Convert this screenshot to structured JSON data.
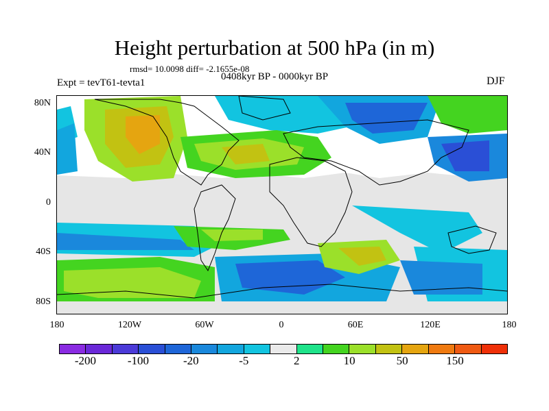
{
  "title": "Height perturbation at 500 hPa (in m)",
  "stats": "rmsd= 10.0098 diff= -2.1655e-08",
  "period": "0408kyr BP - 0000kyr BP",
  "experiment": "Expt = tevT61-tevta1",
  "season": "DJF",
  "lat_ticks": [
    "80N",
    "40N",
    "0",
    "40S",
    "80S"
  ],
  "lon_ticks": [
    "180",
    "120W",
    "60W",
    "0",
    "60E",
    "120E",
    "180"
  ],
  "colorbar": {
    "colors": [
      "#8a2be2",
      "#6a28d8",
      "#4b3ad8",
      "#2a4fd6",
      "#1e66d8",
      "#1a88dc",
      "#12a6de",
      "#12c4e0",
      "#eaeaea",
      "#1fe38a",
      "#44d420",
      "#9be02a",
      "#c2c212",
      "#e5a510",
      "#ef7a10",
      "#ef5a12",
      "#ef3008"
    ],
    "labels": [
      "-200",
      "-100",
      "-20",
      "-5",
      "2",
      "10",
      "50",
      "150"
    ]
  },
  "map": {
    "projection": "cylindrical equidistant",
    "background_color": "#e6e6e6",
    "coastline_color": "#000000"
  }
}
